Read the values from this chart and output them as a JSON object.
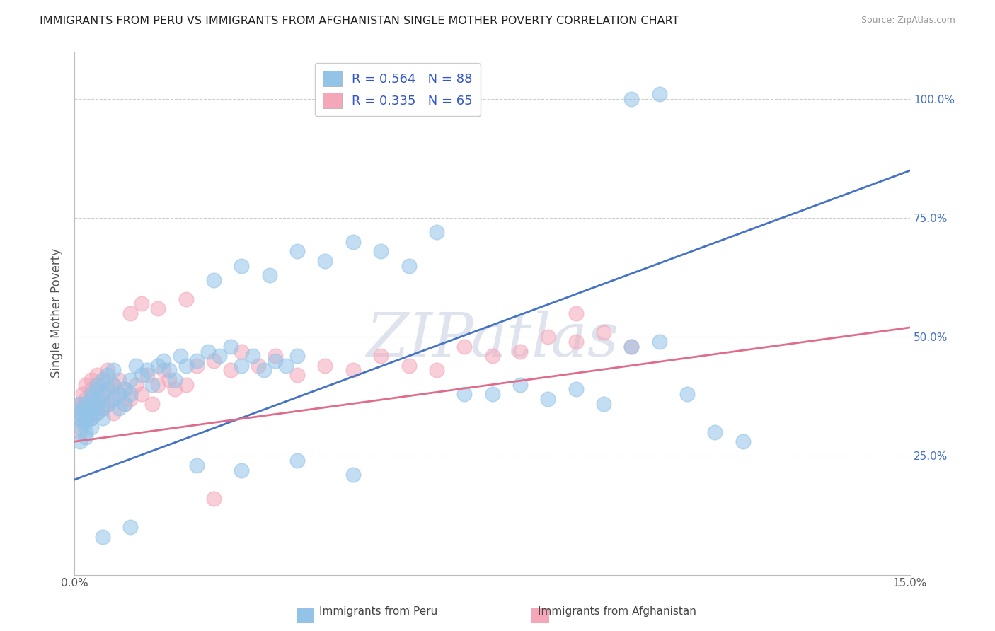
{
  "title": "IMMIGRANTS FROM PERU VS IMMIGRANTS FROM AFGHANISTAN SINGLE MOTHER POVERTY CORRELATION CHART",
  "source": "Source: ZipAtlas.com",
  "ylabel": "Single Mother Poverty",
  "xlim": [
    0.0,
    0.15
  ],
  "ylim": [
    0.0,
    1.1
  ],
  "ytick_positions": [
    0.25,
    0.5,
    0.75,
    1.0
  ],
  "ytick_labels_right": [
    "25.0%",
    "50.0%",
    "75.0%",
    "100.0%"
  ],
  "peru_color": "#93c4e8",
  "afghanistan_color": "#f4a7b9",
  "line_peru_color": "#4472c4",
  "line_afghanistan_color": "#e06c8a",
  "peru_line_y0": 0.2,
  "peru_line_y1": 0.85,
  "afg_line_y0": 0.28,
  "afg_line_y1": 0.52,
  "legend_peru_label": "R = 0.564   N = 88",
  "legend_afghanistan_label": "R = 0.335   N = 65",
  "watermark": "ZIPatlas",
  "background_color": "#ffffff",
  "grid_color": "#cccccc",
  "peru_scatter_x": [
    0.0005,
    0.001,
    0.001,
    0.001,
    0.001,
    0.0015,
    0.0015,
    0.002,
    0.002,
    0.002,
    0.002,
    0.002,
    0.002,
    0.003,
    0.003,
    0.003,
    0.003,
    0.003,
    0.003,
    0.004,
    0.004,
    0.004,
    0.004,
    0.004,
    0.005,
    0.005,
    0.005,
    0.005,
    0.006,
    0.006,
    0.006,
    0.007,
    0.007,
    0.007,
    0.008,
    0.008,
    0.009,
    0.009,
    0.01,
    0.01,
    0.011,
    0.012,
    0.013,
    0.014,
    0.015,
    0.016,
    0.017,
    0.018,
    0.019,
    0.02,
    0.022,
    0.024,
    0.026,
    0.028,
    0.03,
    0.032,
    0.034,
    0.036,
    0.038,
    0.04,
    0.025,
    0.03,
    0.035,
    0.04,
    0.045,
    0.05,
    0.055,
    0.06,
    0.065,
    0.07,
    0.075,
    0.08,
    0.085,
    0.09,
    0.095,
    0.1,
    0.105,
    0.11,
    0.115,
    0.12,
    0.1,
    0.105,
    0.022,
    0.03,
    0.04,
    0.05,
    0.005,
    0.01
  ],
  "peru_scatter_y": [
    0.33,
    0.31,
    0.34,
    0.28,
    0.36,
    0.32,
    0.35,
    0.3,
    0.33,
    0.36,
    0.29,
    0.34,
    0.32,
    0.35,
    0.38,
    0.31,
    0.34,
    0.37,
    0.33,
    0.36,
    0.39,
    0.34,
    0.37,
    0.4,
    0.35,
    0.38,
    0.41,
    0.33,
    0.36,
    0.39,
    0.42,
    0.37,
    0.4,
    0.43,
    0.35,
    0.38,
    0.36,
    0.39,
    0.38,
    0.41,
    0.44,
    0.42,
    0.43,
    0.4,
    0.44,
    0.45,
    0.43,
    0.41,
    0.46,
    0.44,
    0.45,
    0.47,
    0.46,
    0.48,
    0.44,
    0.46,
    0.43,
    0.45,
    0.44,
    0.46,
    0.62,
    0.65,
    0.63,
    0.68,
    0.66,
    0.7,
    0.68,
    0.65,
    0.72,
    0.38,
    0.38,
    0.4,
    0.37,
    0.39,
    0.36,
    0.48,
    0.49,
    0.38,
    0.3,
    0.28,
    1.0,
    1.01,
    0.23,
    0.22,
    0.24,
    0.21,
    0.08,
    0.1
  ],
  "afg_scatter_x": [
    0.0005,
    0.001,
    0.001,
    0.001,
    0.0015,
    0.002,
    0.002,
    0.002,
    0.003,
    0.003,
    0.003,
    0.003,
    0.003,
    0.004,
    0.004,
    0.004,
    0.004,
    0.005,
    0.005,
    0.005,
    0.006,
    0.006,
    0.006,
    0.007,
    0.007,
    0.007,
    0.008,
    0.008,
    0.009,
    0.009,
    0.01,
    0.011,
    0.012,
    0.013,
    0.014,
    0.015,
    0.016,
    0.017,
    0.018,
    0.02,
    0.022,
    0.025,
    0.028,
    0.03,
    0.033,
    0.036,
    0.04,
    0.045,
    0.05,
    0.055,
    0.06,
    0.065,
    0.07,
    0.075,
    0.08,
    0.085,
    0.09,
    0.095,
    0.1,
    0.09,
    0.01,
    0.012,
    0.015,
    0.02,
    0.025
  ],
  "afg_scatter_y": [
    0.35,
    0.33,
    0.36,
    0.3,
    0.38,
    0.34,
    0.37,
    0.4,
    0.36,
    0.39,
    0.33,
    0.41,
    0.35,
    0.37,
    0.4,
    0.34,
    0.42,
    0.38,
    0.41,
    0.35,
    0.36,
    0.39,
    0.43,
    0.37,
    0.4,
    0.34,
    0.38,
    0.41,
    0.36,
    0.39,
    0.37,
    0.4,
    0.38,
    0.42,
    0.36,
    0.4,
    0.43,
    0.41,
    0.39,
    0.4,
    0.44,
    0.45,
    0.43,
    0.47,
    0.44,
    0.46,
    0.42,
    0.44,
    0.43,
    0.46,
    0.44,
    0.43,
    0.48,
    0.46,
    0.47,
    0.5,
    0.49,
    0.51,
    0.48,
    0.55,
    0.55,
    0.57,
    0.56,
    0.58,
    0.16
  ]
}
